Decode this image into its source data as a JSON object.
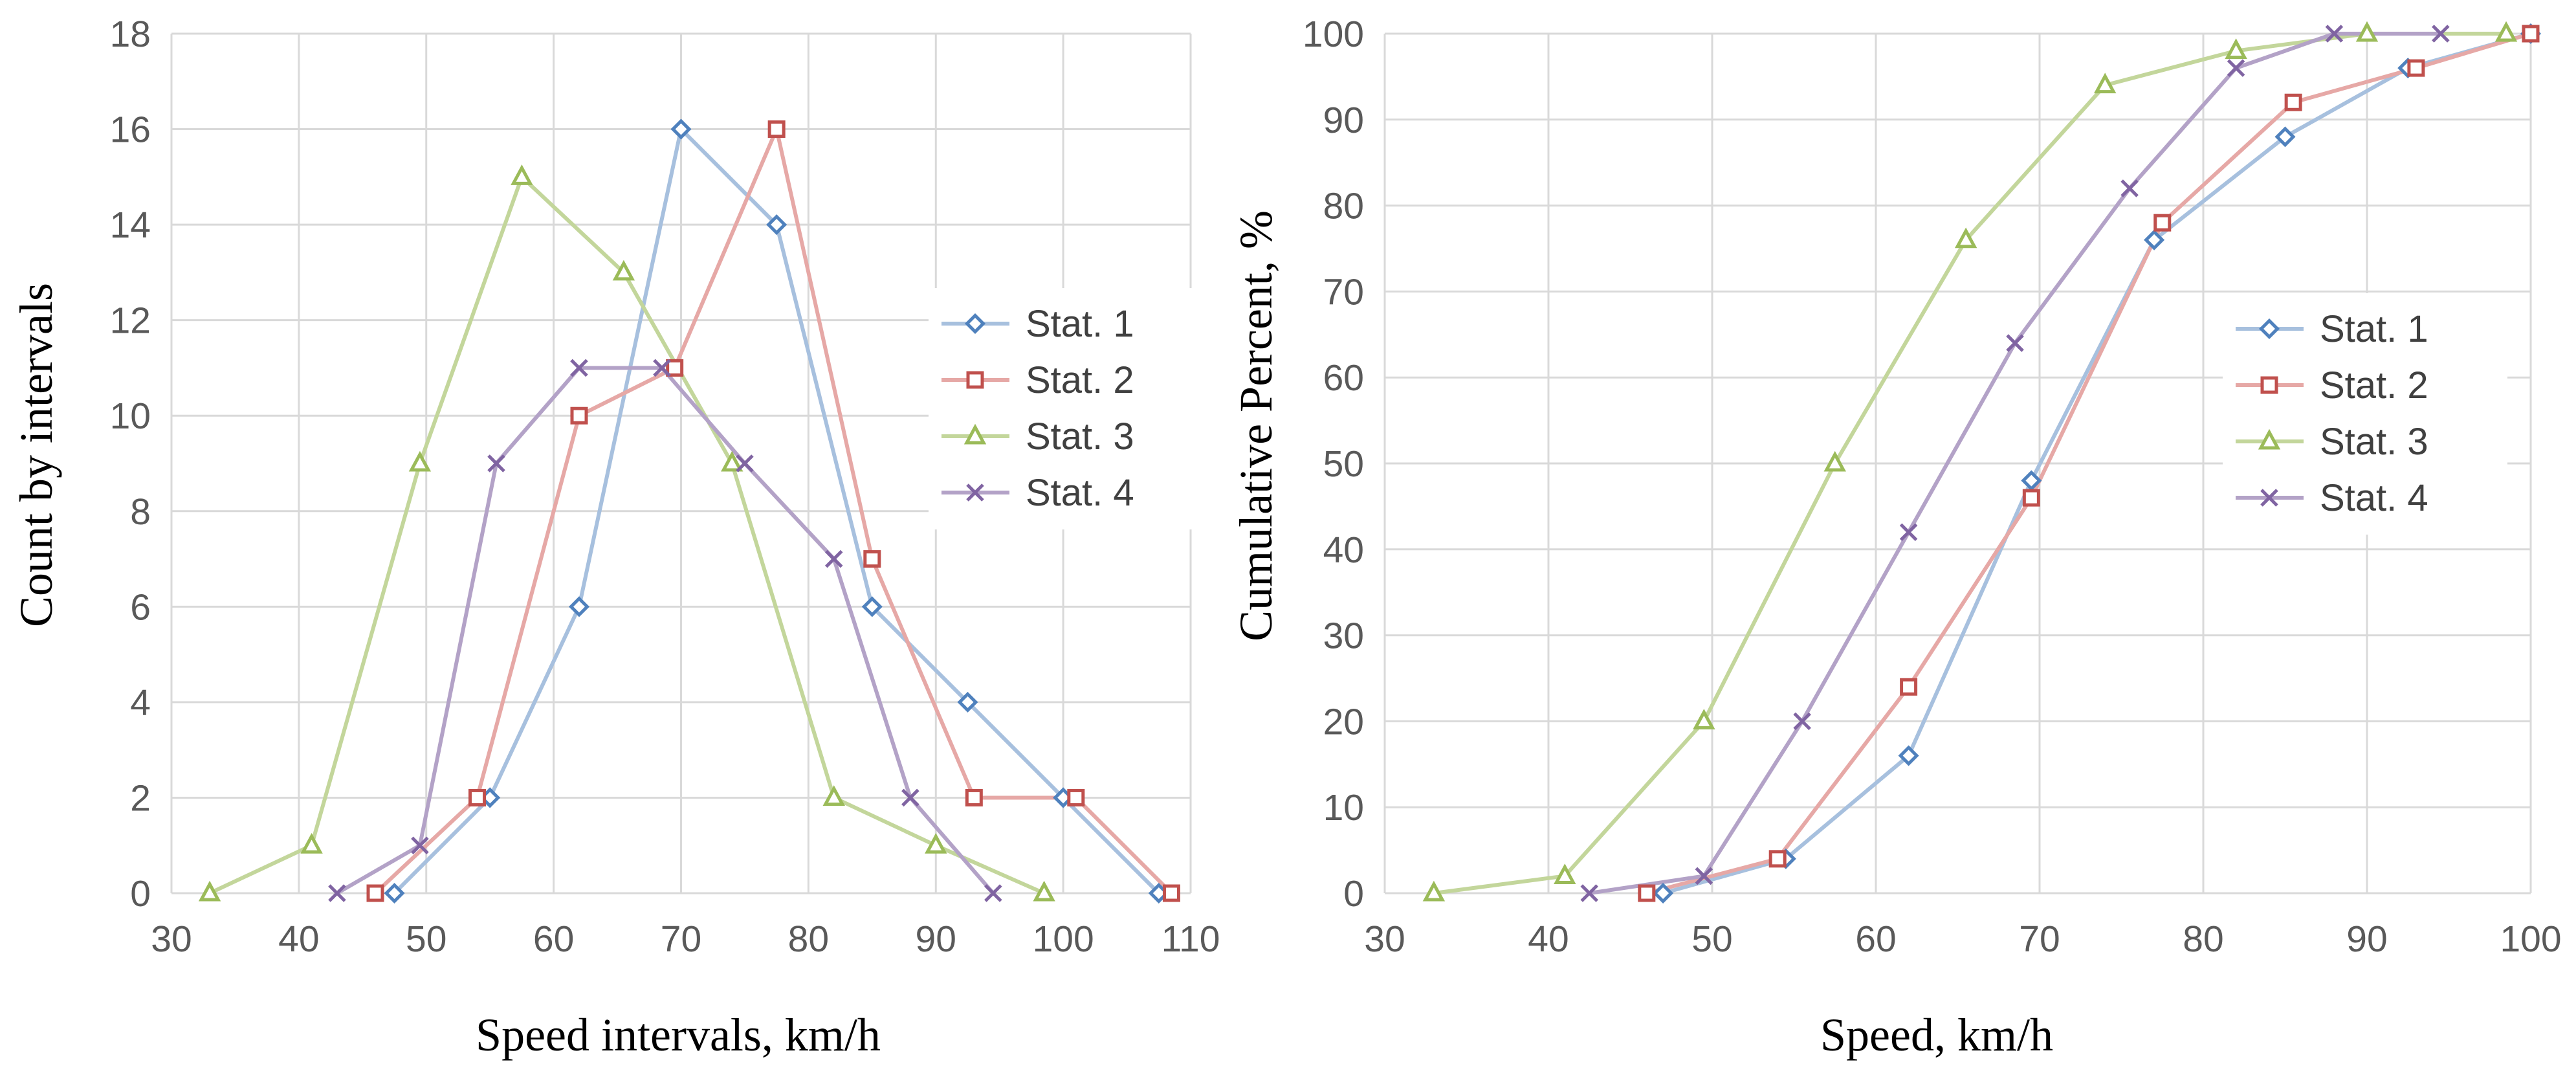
{
  "chart_data": [
    {
      "type": "line",
      "xlabel": "Speed intervals, km/h",
      "ylabel": "Count by intervals",
      "xlim": [
        30,
        110
      ],
      "ylim": [
        0,
        18
      ],
      "xticks": [
        30,
        40,
        50,
        60,
        70,
        80,
        90,
        100,
        110
      ],
      "yticks": [
        0,
        2,
        4,
        6,
        8,
        10,
        12,
        14,
        16,
        18
      ],
      "grid": true,
      "legend": "right",
      "series": [
        {
          "name": "Stat. 1",
          "color": "#4f81bd",
          "line_color": "#a7c0de",
          "marker": "diamond",
          "x": [
            47.5,
            55,
            62,
            70,
            77.5,
            85,
            92.5,
            100,
            107.5
          ],
          "y": [
            0,
            2,
            6,
            16,
            14,
            6,
            4,
            2,
            0
          ]
        },
        {
          "name": "Stat. 2",
          "color": "#c0504d",
          "line_color": "#e6a8a6",
          "marker": "square",
          "x": [
            46,
            54,
            62,
            69.5,
            77.5,
            85,
            93,
            101,
            108.5
          ],
          "y": [
            0,
            2,
            10,
            11,
            16,
            7,
            2,
            2,
            0
          ]
        },
        {
          "name": "Stat. 3",
          "color": "#9bbb59",
          "line_color": "#c3d69b",
          "marker": "triangle",
          "x": [
            33,
            41,
            49.5,
            57.5,
            65.5,
            74,
            82,
            90,
            98.5
          ],
          "y": [
            0,
            1,
            9,
            15,
            13,
            9,
            2,
            1,
            0
          ]
        },
        {
          "name": "Stat. 4",
          "color": "#8064a2",
          "line_color": "#b3a2c7",
          "marker": "cross",
          "x": [
            43,
            49.5,
            55.5,
            62,
            68.5,
            75,
            82,
            88,
            94.5
          ],
          "y": [
            0,
            1,
            9,
            11,
            11,
            9,
            7,
            2,
            0
          ]
        }
      ]
    },
    {
      "type": "line",
      "xlabel": "Speed, km/h",
      "ylabel": "Cumulative  Percent, %",
      "xlim": [
        30,
        100
      ],
      "ylim": [
        0,
        100
      ],
      "xticks": [
        30,
        40,
        50,
        60,
        70,
        80,
        90,
        100
      ],
      "yticks": [
        0,
        10,
        20,
        30,
        40,
        50,
        60,
        70,
        80,
        90,
        100
      ],
      "grid": true,
      "legend": "right",
      "series": [
        {
          "name": "Stat. 1",
          "color": "#4f81bd",
          "line_color": "#a7c0de",
          "marker": "diamond",
          "x": [
            47,
            54.5,
            62,
            69.5,
            77,
            85,
            92.5,
            100
          ],
          "y": [
            0,
            4,
            16,
            48,
            76,
            88,
            96,
            100
          ]
        },
        {
          "name": "Stat. 2",
          "color": "#c0504d",
          "line_color": "#e6a8a6",
          "marker": "square",
          "x": [
            46,
            54,
            62,
            69.5,
            77.5,
            85.5,
            93,
            100
          ],
          "y": [
            0,
            4,
            24,
            46,
            78,
            92,
            96,
            100
          ]
        },
        {
          "name": "Stat. 3",
          "color": "#9bbb59",
          "line_color": "#c3d69b",
          "marker": "triangle",
          "x": [
            33,
            41,
            49.5,
            57.5,
            65.5,
            74,
            82,
            90,
            98.5
          ],
          "y": [
            0,
            2,
            20,
            50,
            76,
            94,
            98,
            100,
            100
          ]
        },
        {
          "name": "Stat. 4",
          "color": "#8064a2",
          "line_color": "#b3a2c7",
          "marker": "cross",
          "x": [
            42.5,
            49.5,
            55.5,
            62,
            68.5,
            75.5,
            82,
            88,
            94.5
          ],
          "y": [
            0,
            2,
            20,
            42,
            64,
            82,
            96,
            100,
            100
          ]
        }
      ]
    }
  ]
}
